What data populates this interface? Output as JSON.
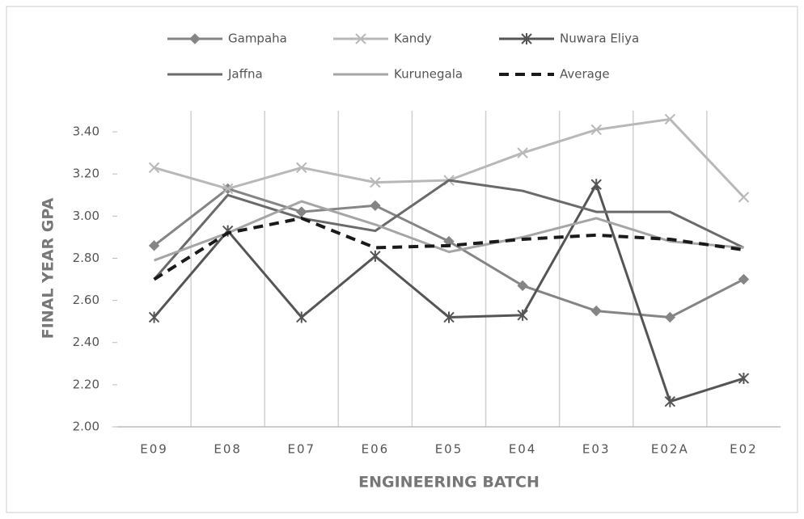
{
  "chart_data": {
    "type": "line",
    "x_label": "ENGINEERING BATCH",
    "y_label": "FINAL YEAR GPA",
    "categories": [
      "E09",
      "E08",
      "E07",
      "E06",
      "E05",
      "E04",
      "E03",
      "E02A",
      "E02"
    ],
    "series": [
      {
        "name": "Gampaha",
        "color": "#858585",
        "marker": "diamond",
        "dash": false,
        "values": [
          2.86,
          3.13,
          3.02,
          3.05,
          2.88,
          2.67,
          2.55,
          2.52,
          2.7
        ]
      },
      {
        "name": "Kandy",
        "color": "#b8b8b8",
        "marker": "x",
        "dash": false,
        "values": [
          3.23,
          3.13,
          3.23,
          3.16,
          3.17,
          3.3,
          3.41,
          3.46,
          3.09
        ]
      },
      {
        "name": "Nuwara Eliya",
        "color": "#555555",
        "marker": "asterisk",
        "dash": false,
        "values": [
          2.52,
          2.93,
          2.52,
          2.81,
          2.52,
          2.53,
          3.15,
          2.12,
          2.23
        ]
      },
      {
        "name": "Jaffna",
        "color": "#6a6a6a",
        "marker": "none",
        "dash": false,
        "values": [
          2.7,
          3.1,
          2.99,
          2.93,
          3.17,
          3.12,
          3.02,
          3.02,
          2.85
        ]
      },
      {
        "name": "Kurunegala",
        "color": "#a5a5a5",
        "marker": "none",
        "dash": false,
        "values": [
          2.79,
          2.92,
          3.07,
          2.96,
          2.83,
          2.9,
          2.99,
          2.88,
          2.85
        ]
      },
      {
        "name": "Average",
        "color": "#1a1a1a",
        "marker": "none",
        "dash": true,
        "values": [
          2.7,
          2.92,
          2.99,
          2.85,
          2.86,
          2.89,
          2.91,
          2.89,
          2.84
        ]
      }
    ],
    "ylim": [
      2.0,
      3.5
    ],
    "yticks": [
      {
        "value": 2.0,
        "label": "2.00"
      },
      {
        "value": 2.2,
        "label": "2.20"
      },
      {
        "value": 2.4,
        "label": "2.40"
      },
      {
        "value": 2.6,
        "label": "2.60"
      },
      {
        "value": 2.8,
        "label": "2.80"
      },
      {
        "value": 3.0,
        "label": "3.00"
      },
      {
        "value": 3.2,
        "label": "3.20"
      },
      {
        "value": 3.4,
        "label": "3.40"
      }
    ],
    "grid": "x",
    "legend": "top"
  }
}
